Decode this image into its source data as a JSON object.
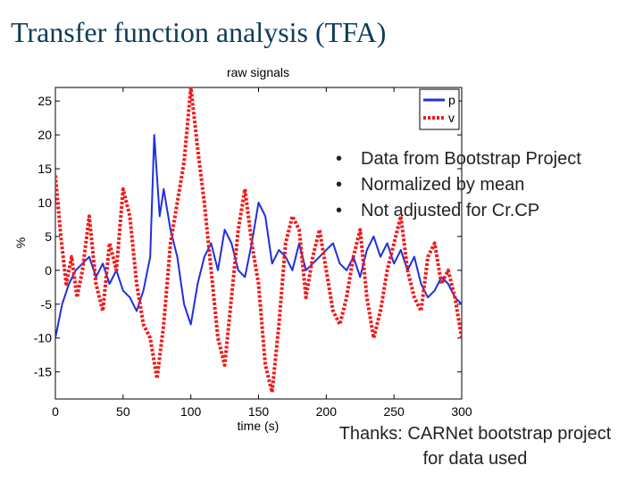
{
  "slide": {
    "title": "Transfer function analysis (TFA)",
    "bullets": [
      "Data from Bootstrap Project",
      "Normalized by mean",
      "Not adjusted for Cr.CP"
    ],
    "credit": "Thanks: CARNet bootstrap project for data used"
  },
  "chart_data": {
    "type": "line",
    "title": "raw signals",
    "xlabel": "time (s)",
    "ylabel": "%",
    "xlim": [
      0,
      300
    ],
    "ylim": [
      -19,
      27
    ],
    "xticks": [
      0,
      50,
      100,
      150,
      200,
      250,
      300
    ],
    "yticks": [
      -15,
      -10,
      -5,
      0,
      5,
      10,
      15,
      20,
      25
    ],
    "grid": false,
    "legend_position": "top-right",
    "series": [
      {
        "name": "p",
        "color": "#1f2fe0",
        "style": "solid",
        "x": [
          0,
          5,
          10,
          15,
          20,
          25,
          30,
          35,
          40,
          45,
          50,
          55,
          60,
          65,
          70,
          73,
          77,
          80,
          85,
          90,
          95,
          100,
          105,
          110,
          115,
          120,
          125,
          130,
          135,
          140,
          145,
          150,
          155,
          160,
          165,
          170,
          175,
          180,
          185,
          190,
          195,
          200,
          205,
          210,
          215,
          220,
          225,
          230,
          235,
          240,
          245,
          250,
          255,
          260,
          265,
          270,
          275,
          280,
          285,
          290,
          295,
          300
        ],
        "values": [
          -10,
          -5,
          -2,
          0,
          1,
          2,
          -1,
          1,
          -2,
          0,
          -3,
          -4,
          -6,
          -3,
          2,
          20,
          8,
          12,
          6,
          2,
          -5,
          -8,
          -2,
          2,
          4,
          0,
          6,
          4,
          0,
          -1,
          4,
          10,
          8,
          1,
          3,
          2,
          0,
          4,
          0,
          1,
          2,
          3,
          4,
          1,
          0,
          2,
          -1,
          3,
          5,
          2,
          4,
          1,
          3,
          0,
          2,
          -2,
          -4,
          -3,
          -1,
          -2,
          -4,
          -5
        ]
      },
      {
        "name": "v",
        "color": "#ee1c1c",
        "style": "dotted",
        "x": [
          0,
          4,
          8,
          12,
          16,
          20,
          25,
          30,
          35,
          40,
          45,
          50,
          55,
          60,
          65,
          70,
          75,
          80,
          85,
          90,
          95,
          100,
          105,
          110,
          115,
          120,
          125,
          130,
          135,
          140,
          145,
          150,
          155,
          160,
          165,
          170,
          175,
          180,
          185,
          190,
          195,
          200,
          205,
          210,
          215,
          220,
          225,
          230,
          235,
          240,
          245,
          250,
          255,
          260,
          265,
          270,
          275,
          280,
          285,
          290,
          295,
          300
        ],
        "values": [
          14,
          5,
          -2,
          2,
          -4,
          0,
          8,
          -2,
          -6,
          4,
          0,
          12,
          8,
          -2,
          -8,
          -10,
          -16,
          -8,
          4,
          10,
          16,
          27,
          18,
          10,
          0,
          -10,
          -14,
          -4,
          6,
          12,
          4,
          -2,
          -14,
          -18,
          -8,
          4,
          8,
          6,
          -4,
          2,
          6,
          0,
          -6,
          -8,
          -4,
          2,
          6,
          -4,
          -10,
          -6,
          0,
          4,
          8,
          0,
          -4,
          -6,
          2,
          4,
          -2,
          0,
          -4,
          -10
        ]
      }
    ]
  }
}
